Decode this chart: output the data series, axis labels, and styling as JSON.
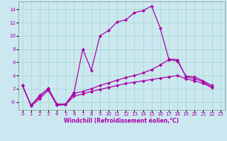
{
  "background_color": "#cbe8f0",
  "grid_color": "#a8d8cc",
  "line_color": "#aa00aa",
  "marker": "D",
  "markersize": 2.2,
  "linewidth": 0.9,
  "xlabel": "Windchill (Refroidissement éolien,°C)",
  "xlabel_fontsize": 5.5,
  "tick_fontsize": 5.0,
  "xlim": [
    -0.5,
    23.5
  ],
  "ylim": [
    -1.2,
    15.2
  ],
  "yticks": [
    0,
    2,
    4,
    6,
    8,
    10,
    12,
    14
  ],
  "ytick_labels": [
    "-0",
    "2",
    "4",
    "6",
    "8",
    "10",
    "12",
    "14"
  ],
  "xticks": [
    0,
    1,
    2,
    3,
    4,
    5,
    6,
    7,
    8,
    9,
    10,
    11,
    12,
    13,
    14,
    15,
    16,
    17,
    18,
    19,
    20,
    21,
    22,
    23
  ],
  "series": [
    {
      "x": [
        0,
        1,
        2,
        3,
        4,
        5,
        6,
        7,
        8,
        9,
        10,
        11,
        12,
        13,
        14,
        15,
        16,
        17,
        18,
        19,
        20,
        21,
        22
      ],
      "y": [
        2.5,
        -0.5,
        1.0,
        2.0,
        -0.3,
        -0.3,
        1.5,
        8.0,
        4.8,
        10.0,
        10.8,
        12.1,
        12.4,
        13.5,
        13.8,
        14.5,
        11.2,
        6.5,
        6.4,
        3.8,
        3.5,
        3.1,
        2.2
      ]
    },
    {
      "x": [
        0,
        1,
        2,
        3,
        4,
        5,
        6,
        7,
        8,
        9,
        10,
        11,
        12,
        13,
        14,
        15,
        16,
        17,
        18,
        19,
        20,
        21,
        22
      ],
      "y": [
        2.5,
        -0.5,
        0.8,
        2.1,
        -0.4,
        -0.4,
        1.3,
        1.6,
        2.0,
        2.5,
        2.9,
        3.3,
        3.7,
        4.0,
        4.4,
        4.9,
        5.6,
        6.4,
        6.2,
        3.9,
        3.8,
        3.2,
        2.5
      ]
    },
    {
      "x": [
        0,
        1,
        2,
        3,
        4,
        5,
        6,
        7,
        8,
        9,
        10,
        11,
        12,
        13,
        14,
        15,
        16,
        17,
        18,
        19,
        20,
        21,
        22
      ],
      "y": [
        2.5,
        -0.6,
        0.5,
        1.8,
        -0.5,
        -0.4,
        0.9,
        1.2,
        1.6,
        1.9,
        2.2,
        2.5,
        2.8,
        3.0,
        3.2,
        3.4,
        3.6,
        3.8,
        4.0,
        3.5,
        3.2,
        2.8,
        2.2
      ]
    }
  ]
}
